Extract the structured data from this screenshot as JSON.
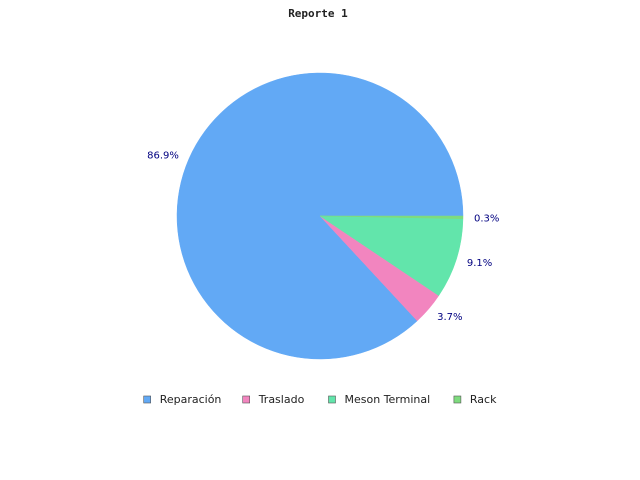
{
  "chart_data": {
    "type": "pie",
    "title": "Reporte 1",
    "slices": [
      {
        "name": "Reparación",
        "value": 86.9,
        "label": "86.9%",
        "color": "#62a9f5"
      },
      {
        "name": "Traslado",
        "value": 3.7,
        "label": "3.7%",
        "color": "#f285bf"
      },
      {
        "name": "Meson Terminal",
        "value": 9.1,
        "label": "9.1%",
        "color": "#62e5ab"
      },
      {
        "name": "Rack",
        "value": 0.3,
        "label": "0.3%",
        "color": "#7edb7e"
      }
    ],
    "legend_position": "bottom",
    "start_direction": "east",
    "rotation": "counterclockwise"
  }
}
